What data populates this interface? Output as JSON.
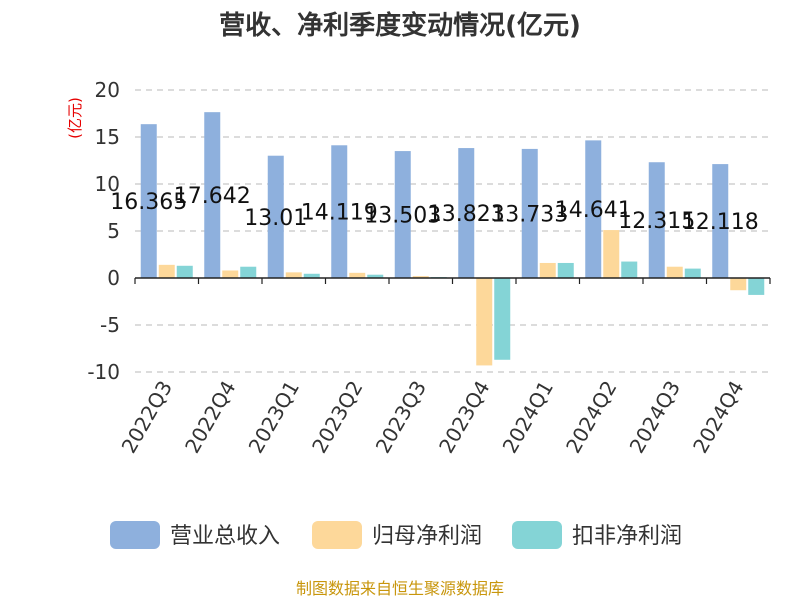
{
  "chart_data": {
    "type": "bar",
    "title": "营收、净利季度变动情况(亿元)",
    "ylabel": "(亿元)",
    "xlabel": "",
    "ylim": [
      -10,
      20
    ],
    "yticks": [
      20,
      15,
      10,
      5,
      0,
      -5,
      -10
    ],
    "grid": true,
    "legend_position": "bottom",
    "categories": [
      "2022Q3",
      "2022Q4",
      "2023Q1",
      "2023Q2",
      "2023Q3",
      "2023Q4",
      "2024Q1",
      "2024Q2",
      "2024Q3",
      "2024Q4"
    ],
    "series": [
      {
        "name": "营业总收入",
        "color": "#8eb0dd",
        "values": [
          16.365,
          17.642,
          13.01,
          14.119,
          13.503,
          13.823,
          13.733,
          14.641,
          12.315,
          12.118
        ],
        "labels": [
          "16.365",
          "17.642",
          "13.01",
          "14.119",
          "13.503",
          "13.823",
          "13.733",
          "14.641",
          "12.315",
          "12.118"
        ]
      },
      {
        "name": "归母净利润",
        "color": "#fdd89a",
        "values": [
          1.4,
          0.8,
          0.6,
          0.55,
          0.2,
          -9.3,
          1.6,
          5.1,
          1.2,
          -1.3
        ]
      },
      {
        "name": "扣非净利润",
        "color": "#84d4d6",
        "values": [
          1.3,
          1.2,
          0.45,
          0.35,
          0.1,
          -8.7,
          1.6,
          1.75,
          1.0,
          -1.8
        ]
      }
    ]
  },
  "source": "制图数据来自恒生聚源数据库"
}
